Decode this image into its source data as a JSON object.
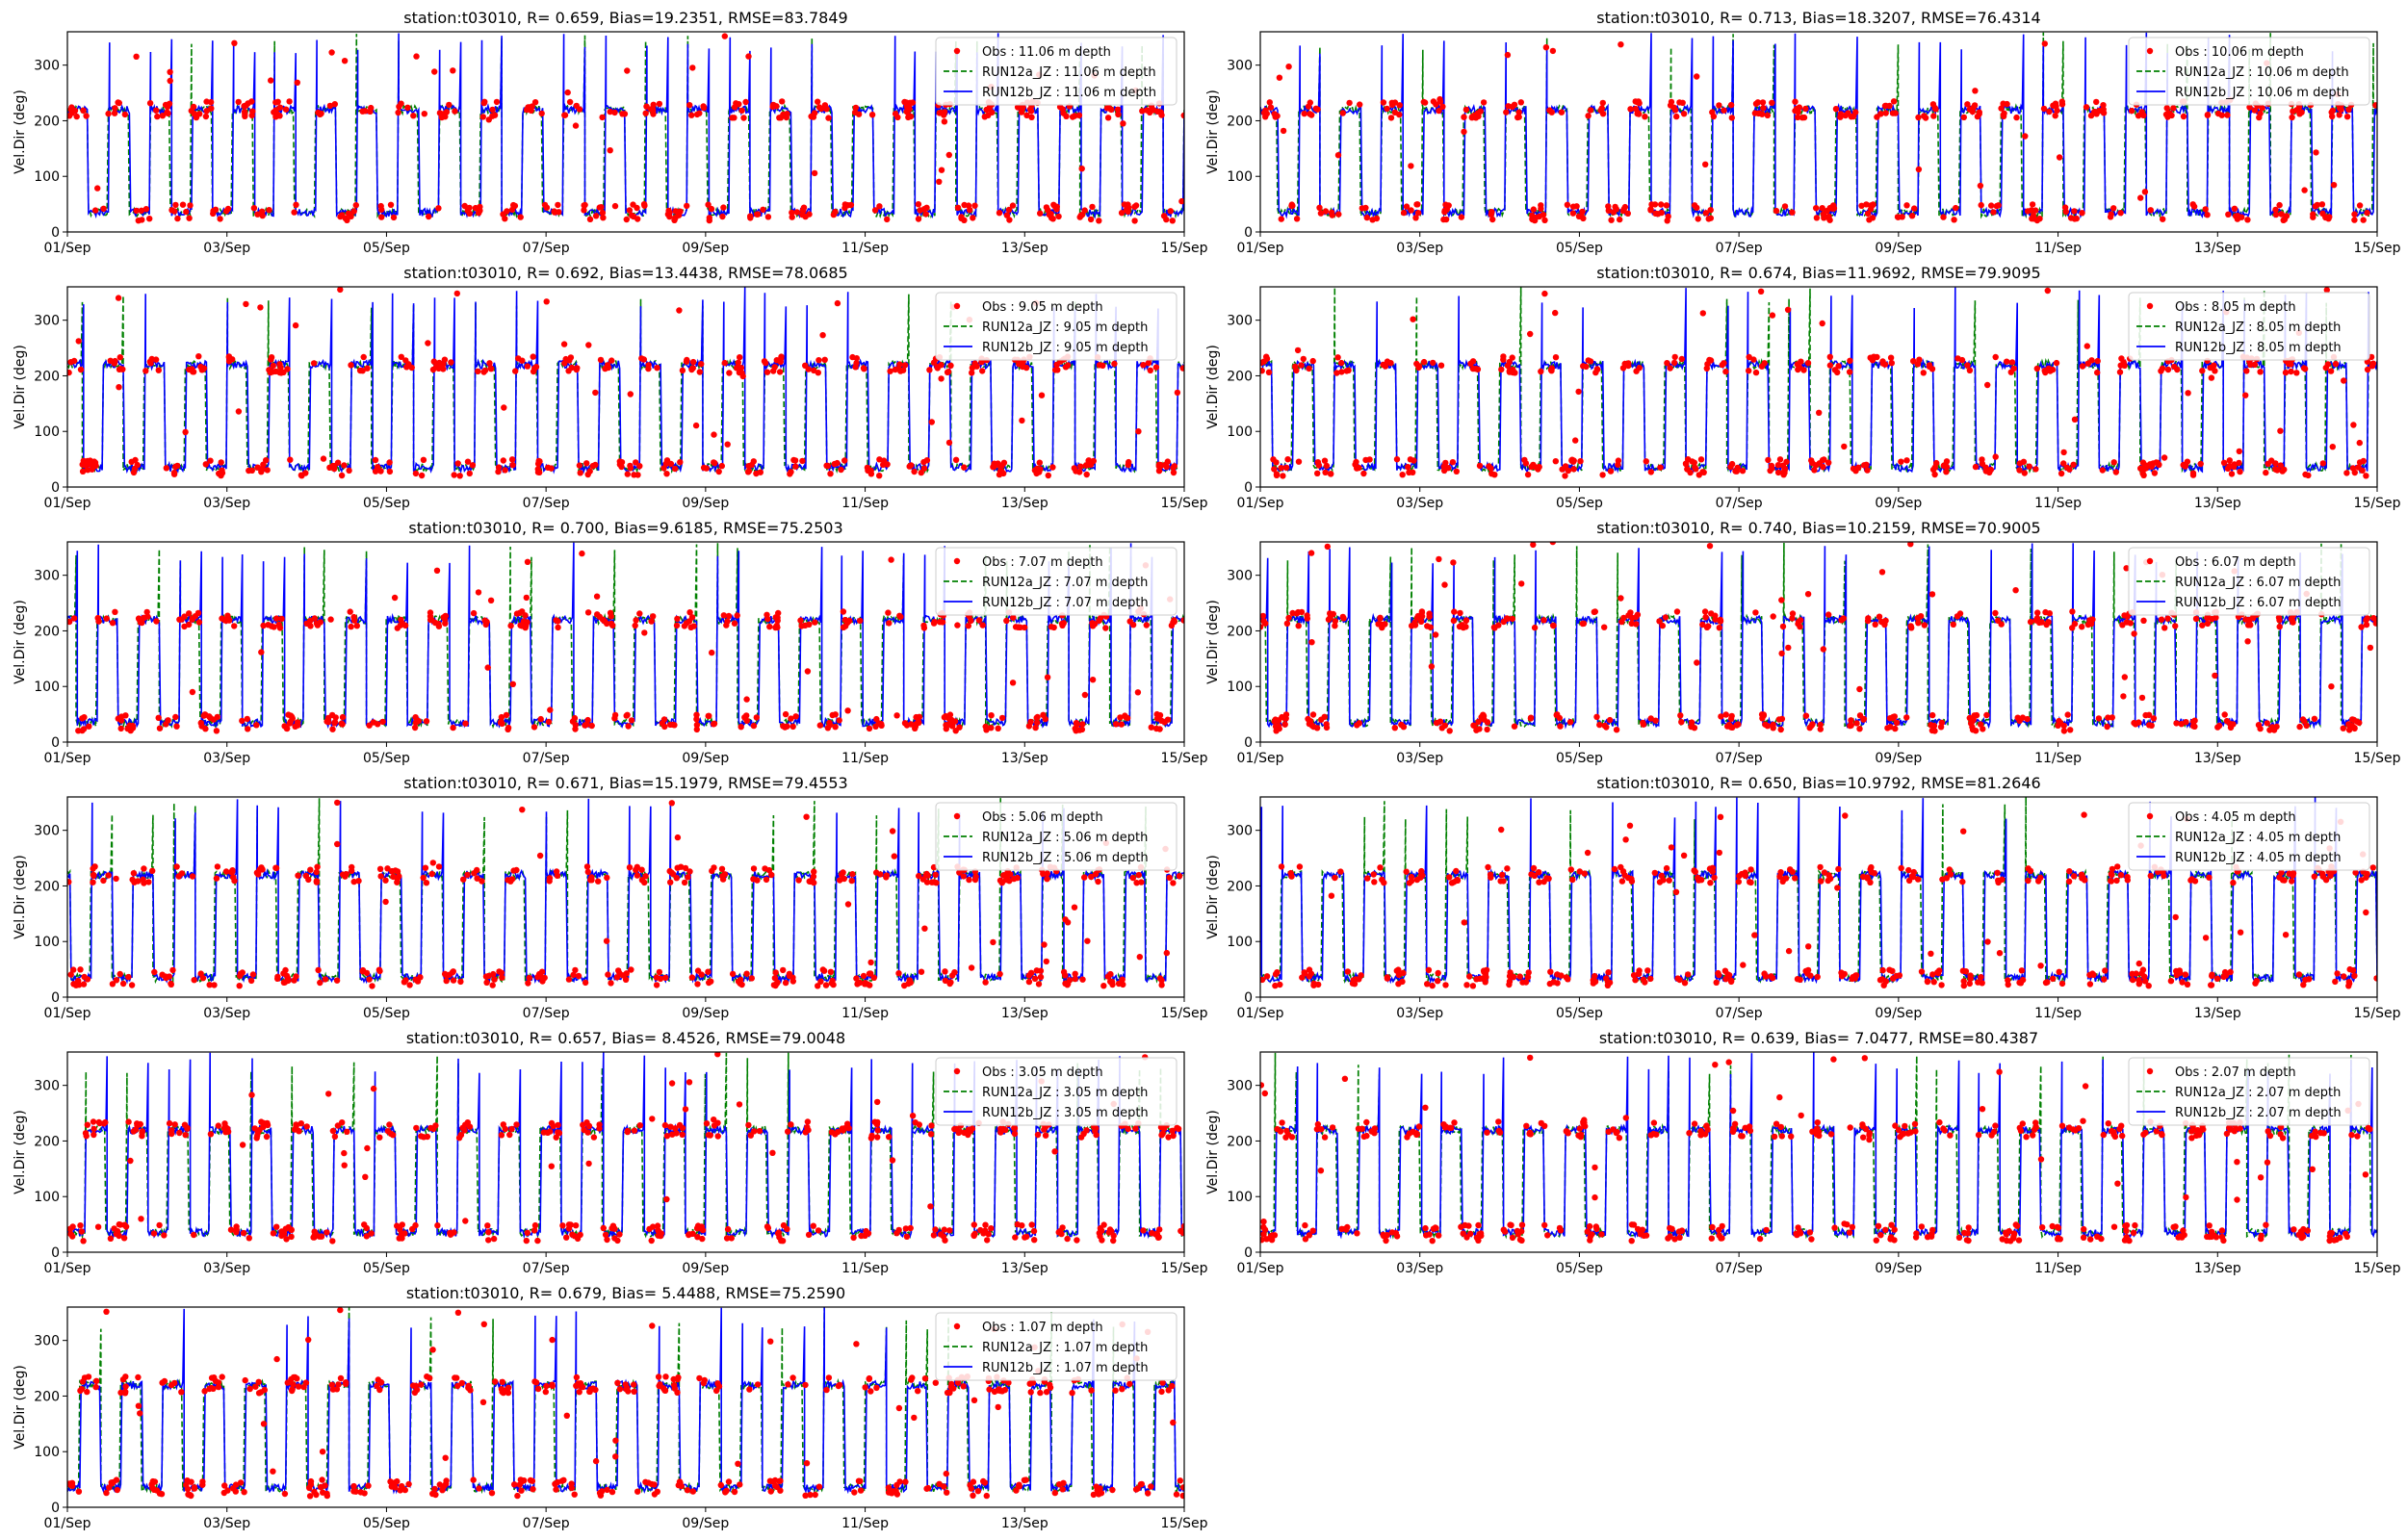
{
  "colors": {
    "obs": "#ff0000",
    "run12a": "#008000",
    "run12b": "#0000ff"
  },
  "chart_data": {
    "type": "scatter",
    "x_ticks": [
      "01/Sep",
      "03/Sep",
      "05/Sep",
      "07/Sep",
      "09/Sep",
      "11/Sep",
      "13/Sep",
      "15/Sep"
    ],
    "xlim": [
      "01/Sep",
      "15/Sep"
    ],
    "ylim": [
      0,
      360
    ],
    "y_ticks": [
      0,
      100,
      200,
      300
    ],
    "ylabel": "Vel.Dir (deg)",
    "legend_position": "upper right",
    "grid": false,
    "series_styles": {
      "obs": "red dots",
      "run12a": "green dashed line",
      "run12b": "blue solid line"
    },
    "panels": [
      {
        "title": "station:t03010, R= 0.659, Bias=19.2351, RMSE=83.7849",
        "depth": "11.06",
        "legend": [
          "Obs : 11.06 m depth",
          "RUN12a_JZ : 11.06 m depth",
          "RUN12b_JZ : 11.06 m depth"
        ]
      },
      {
        "title": "station:t03010, R= 0.713, Bias=18.3207, RMSE=76.4314",
        "depth": "10.06",
        "legend": [
          "Obs : 10.06 m depth",
          "RUN12a_JZ : 10.06 m depth",
          "RUN12b_JZ : 10.06 m depth"
        ]
      },
      {
        "title": "station:t03010, R= 0.692, Bias=13.4438, RMSE=78.0685",
        "depth": "9.05",
        "legend": [
          "Obs : 9.05 m depth",
          "RUN12a_JZ : 9.05 m depth",
          "RUN12b_JZ : 9.05 m depth"
        ]
      },
      {
        "title": "station:t03010, R= 0.674, Bias=11.9692, RMSE=79.9095",
        "depth": "8.05",
        "legend": [
          "Obs : 8.05 m depth",
          "RUN12a_JZ : 8.05 m depth",
          "RUN12b_JZ : 8.05 m depth"
        ]
      },
      {
        "title": "station:t03010, R= 0.700, Bias=9.6185, RMSE=75.2503",
        "depth": "7.07",
        "legend": [
          "Obs : 7.07 m depth",
          "RUN12a_JZ : 7.07 m depth",
          "RUN12b_JZ : 7.07 m depth"
        ]
      },
      {
        "title": "station:t03010, R= 0.740, Bias=10.2159, RMSE=70.9005",
        "depth": "6.07",
        "legend": [
          "Obs : 6.07 m depth",
          "RUN12a_JZ : 6.07 m depth",
          "RUN12b_JZ : 6.07 m depth"
        ]
      },
      {
        "title": "station:t03010, R= 0.671, Bias=15.1979, RMSE=79.4553",
        "depth": "5.06",
        "legend": [
          "Obs : 5.06 m depth",
          "RUN12a_JZ : 5.06 m depth",
          "RUN12b_JZ : 5.06 m depth"
        ]
      },
      {
        "title": "station:t03010, R= 0.650, Bias=10.9792, RMSE=81.2646",
        "depth": "4.05",
        "legend": [
          "Obs : 4.05 m depth",
          "RUN12a_JZ : 4.05 m depth",
          "RUN12b_JZ : 4.05 m depth"
        ]
      },
      {
        "title": "station:t03010, R= 0.657, Bias= 8.4526, RMSE=79.0048",
        "depth": "3.05",
        "legend": [
          "Obs : 3.05 m depth",
          "RUN12a_JZ : 3.05 m depth",
          "RUN12b_JZ : 3.05 m depth"
        ]
      },
      {
        "title": "station:t03010, R= 0.639, Bias= 7.0477, RMSE=80.4387",
        "depth": "2.07",
        "legend": [
          "Obs : 2.07 m depth",
          "RUN12a_JZ : 2.07 m depth",
          "RUN12b_JZ : 2.07 m depth"
        ]
      },
      {
        "title": "station:t03010, R= 0.679, Bias= 5.4488, RMSE=75.2590",
        "depth": "1.07",
        "legend": [
          "Obs : 1.07 m depth",
          "RUN12a_JZ : 1.07 m depth",
          "RUN12b_JZ : 1.07 m depth"
        ]
      }
    ],
    "tidal_pattern": {
      "description": "Direction alternates between ~220 deg (flood) and ~30-40 deg (ebb) roughly twice daily; occasional spikes toward 300-360 deg at transitions.",
      "high_level": 220,
      "low_level": 35,
      "cycles_per_day": 1.93
    }
  }
}
